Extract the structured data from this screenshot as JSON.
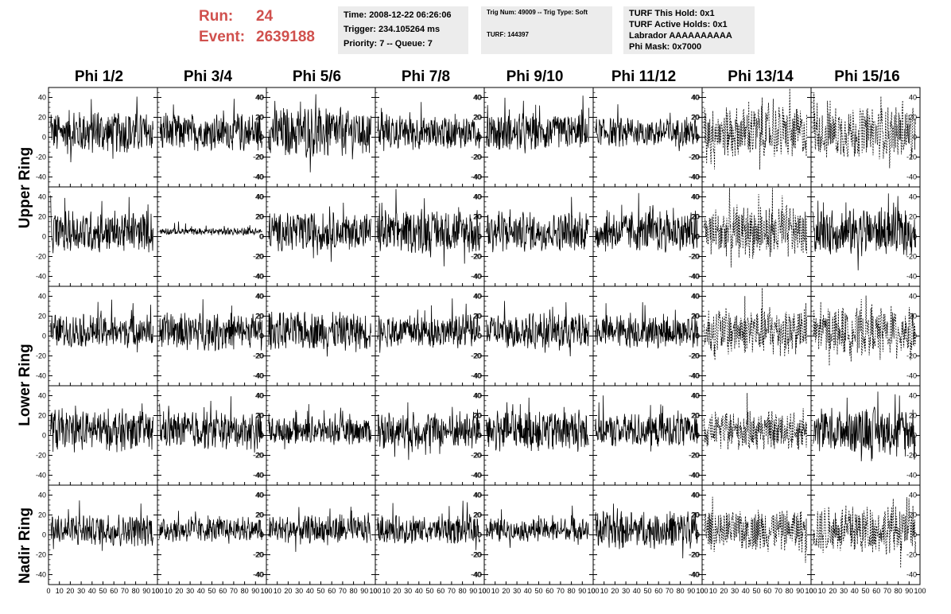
{
  "header": {
    "run_label": "Run:",
    "run_value": "24",
    "event_label": "Event:",
    "event_value": "2639188",
    "time": "Time: 2008-12-22 06:26:06",
    "trigger": "Trigger: 234.105264 ms",
    "priority": "Priority: 7 -- Queue: 7",
    "trig_num": "Trig Num: 49009 -- Trig Type: Soft",
    "turf": "TURF: 144397",
    "turf_hold": "TURF This Hold: 0x1",
    "turf_active": "TURF Active Holds: 0x1",
    "labrador": "Labrador AAAAAAAAAA",
    "phi_mask": "Phi Mask: 0x7000",
    "colors": {
      "accent": "#d0504d",
      "info_bg": "#ececec"
    }
  },
  "columns": [
    "Phi 1/2",
    "Phi 3/4",
    "Phi 5/6",
    "Phi 7/8",
    "Phi 9/10",
    "Phi 11/12",
    "Phi 13/14",
    "Phi 15/16"
  ],
  "rows": [
    "Upper Ring",
    "Lower Ring",
    "Nadir Ring"
  ],
  "chart_data": {
    "type": "line",
    "title": "",
    "xlabel": "",
    "ylabel": "",
    "xlim": [
      0,
      100
    ],
    "ylim": [
      -50,
      50
    ],
    "x_ticks": [
      "0",
      "10",
      "20",
      "30",
      "40",
      "50",
      "60",
      "70",
      "80",
      "90",
      "100"
    ],
    "y_ticks": [
      "-40",
      "-20",
      "0",
      "20",
      "40"
    ],
    "grid": false,
    "dashed_columns": [
      6
    ],
    "panel_rows": 5,
    "panel_cols": 8,
    "amplitude_pattern": [
      [
        18,
        16,
        22,
        14,
        16,
        12,
        22,
        22
      ],
      [
        18,
        3,
        16,
        18,
        17,
        18,
        22,
        20
      ],
      [
        14,
        16,
        16,
        14,
        15,
        14,
        20,
        20
      ],
      [
        18,
        16,
        12,
        16,
        18,
        14,
        16,
        20
      ],
      [
        14,
        10,
        12,
        12,
        10,
        16,
        18,
        20
      ]
    ]
  }
}
